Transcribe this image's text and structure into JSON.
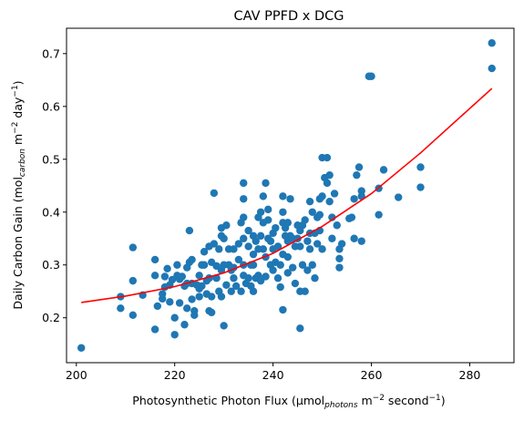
{
  "chart_data": {
    "type": "scatter",
    "title": "CAV PPFD x DCG",
    "xlabel": {
      "pre": "Photosynthetic Photon Flux (µmol",
      "sub": "photons",
      "mid": " m",
      "sup": "−2",
      "post": " second",
      "sup2": "−1",
      "end": ")"
    },
    "ylabel": {
      "pre": "Daily Carbon Gain (mol",
      "sub": "carbon",
      "mid": " m",
      "sup": "−2",
      "post": " day",
      "sup2": "−1",
      "end": ")"
    },
    "xlim": [
      198,
      289
    ],
    "ylim": [
      0.115,
      0.748
    ],
    "xticks": [
      200,
      220,
      240,
      260,
      280
    ],
    "yticks": [
      0.2,
      0.3,
      0.4,
      0.5,
      0.6,
      0.7
    ],
    "grid": false,
    "series": [
      {
        "kind": "scatter",
        "color": "#1f77b4",
        "points": [
          [
            201,
            0.143
          ],
          [
            209,
            0.24
          ],
          [
            209,
            0.218
          ],
          [
            211.5,
            0.333
          ],
          [
            211.5,
            0.27
          ],
          [
            211.5,
            0.205
          ],
          [
            213.5,
            0.243
          ],
          [
            216,
            0.31
          ],
          [
            216,
            0.28
          ],
          [
            216,
            0.178
          ],
          [
            216.5,
            0.222
          ],
          [
            217.5,
            0.236
          ],
          [
            217.5,
            0.245
          ],
          [
            218,
            0.258
          ],
          [
            218,
            0.278
          ],
          [
            218.5,
            0.293
          ],
          [
            219,
            0.262
          ],
          [
            219,
            0.23
          ],
          [
            219.5,
            0.272
          ],
          [
            220,
            0.2
          ],
          [
            220,
            0.168
          ],
          [
            220.5,
            0.28
          ],
          [
            220.5,
            0.3
          ],
          [
            221,
            0.273
          ],
          [
            221,
            0.228
          ],
          [
            221.5,
            0.278
          ],
          [
            222,
            0.26
          ],
          [
            222,
            0.187
          ],
          [
            222.5,
            0.218
          ],
          [
            222.5,
            0.265
          ],
          [
            222.5,
            0.295
          ],
          [
            223,
            0.365
          ],
          [
            223,
            0.305
          ],
          [
            223.5,
            0.31
          ],
          [
            223.5,
            0.265
          ],
          [
            223.5,
            0.235
          ],
          [
            224,
            0.213
          ],
          [
            224,
            0.205
          ],
          [
            224.5,
            0.262
          ],
          [
            225,
            0.28
          ],
          [
            225,
            0.255
          ],
          [
            225,
            0.24
          ],
          [
            225.5,
            0.3
          ],
          [
            225.5,
            0.26
          ],
          [
            226,
            0.325
          ],
          [
            226,
            0.3
          ],
          [
            226.5,
            0.27
          ],
          [
            226.5,
            0.245
          ],
          [
            227,
            0.335
          ],
          [
            227,
            0.275
          ],
          [
            227,
            0.213
          ],
          [
            227.5,
            0.305
          ],
          [
            227.5,
            0.24
          ],
          [
            227.5,
            0.21
          ],
          [
            228,
            0.436
          ],
          [
            228,
            0.34
          ],
          [
            228.5,
            0.298
          ],
          [
            228.5,
            0.275
          ],
          [
            229,
            0.33
          ],
          [
            229,
            0.25
          ],
          [
            229.5,
            0.37
          ],
          [
            229.5,
            0.355
          ],
          [
            229.5,
            0.29
          ],
          [
            229.5,
            0.24
          ],
          [
            230,
            0.35
          ],
          [
            230,
            0.3
          ],
          [
            230,
            0.185
          ],
          [
            230.5,
            0.375
          ],
          [
            230.5,
            0.262
          ],
          [
            231,
            0.33
          ],
          [
            231,
            0.3
          ],
          [
            231.5,
            0.29
          ],
          [
            231.5,
            0.25
          ],
          [
            232,
            0.33
          ],
          [
            232,
            0.295
          ],
          [
            232,
            0.275
          ],
          [
            232.5,
            0.26
          ],
          [
            233,
            0.34
          ],
          [
            233,
            0.31
          ],
          [
            233.5,
            0.38
          ],
          [
            233.5,
            0.25
          ],
          [
            234,
            0.455
          ],
          [
            234,
            0.425
          ],
          [
            234,
            0.39
          ],
          [
            234,
            0.35
          ],
          [
            234,
            0.3
          ],
          [
            234,
            0.28
          ],
          [
            234.5,
            0.265
          ],
          [
            235,
            0.365
          ],
          [
            235,
            0.335
          ],
          [
            235,
            0.275
          ],
          [
            235.5,
            0.3
          ],
          [
            235.5,
            0.26
          ],
          [
            236,
            0.355
          ],
          [
            236,
            0.32
          ],
          [
            236,
            0.3
          ],
          [
            236,
            0.25
          ],
          [
            236.5,
            0.345
          ],
          [
            236.5,
            0.275
          ],
          [
            237,
            0.39
          ],
          [
            237,
            0.33
          ],
          [
            237,
            0.28
          ],
          [
            237.5,
            0.4
          ],
          [
            237.5,
            0.355
          ],
          [
            237.5,
            0.27
          ],
          [
            238,
            0.43
          ],
          [
            238,
            0.38
          ],
          [
            238,
            0.33
          ],
          [
            238.5,
            0.455
          ],
          [
            238.5,
            0.315
          ],
          [
            238.5,
            0.278
          ],
          [
            239,
            0.405
          ],
          [
            239,
            0.385
          ],
          [
            239,
            0.35
          ],
          [
            239.5,
            0.345
          ],
          [
            239.5,
            0.3
          ],
          [
            240,
            0.36
          ],
          [
            240,
            0.33
          ],
          [
            240,
            0.29
          ],
          [
            240.5,
            0.37
          ],
          [
            240.5,
            0.305
          ],
          [
            241,
            0.335
          ],
          [
            241,
            0.275
          ],
          [
            241.5,
            0.3
          ],
          [
            241.5,
            0.258
          ],
          [
            242,
            0.43
          ],
          [
            242,
            0.4
          ],
          [
            242,
            0.38
          ],
          [
            242,
            0.32
          ],
          [
            242,
            0.215
          ],
          [
            242.5,
            0.37
          ],
          [
            242.5,
            0.355
          ],
          [
            243,
            0.38
          ],
          [
            243,
            0.345
          ],
          [
            243,
            0.315
          ],
          [
            243,
            0.285
          ],
          [
            243.5,
            0.425
          ],
          [
            243.5,
            0.355
          ],
          [
            244,
            0.35
          ],
          [
            244,
            0.295
          ],
          [
            244.5,
            0.335
          ],
          [
            244.5,
            0.265
          ],
          [
            245,
            0.375
          ],
          [
            245,
            0.35
          ],
          [
            245.5,
            0.365
          ],
          [
            245.5,
            0.335
          ],
          [
            245.5,
            0.25
          ],
          [
            245.5,
            0.18
          ],
          [
            246,
            0.375
          ],
          [
            246,
            0.3
          ],
          [
            246.5,
            0.385
          ],
          [
            246.5,
            0.25
          ],
          [
            247,
            0.345
          ],
          [
            247,
            0.29
          ],
          [
            247.5,
            0.42
          ],
          [
            247.5,
            0.36
          ],
          [
            247.5,
            0.33
          ],
          [
            248,
            0.4
          ],
          [
            248,
            0.3
          ],
          [
            248.5,
            0.36
          ],
          [
            248.5,
            0.275
          ],
          [
            249,
            0.39
          ],
          [
            249,
            0.34
          ],
          [
            249.5,
            0.425
          ],
          [
            249.5,
            0.395
          ],
          [
            249.5,
            0.365
          ],
          [
            250,
            0.43
          ],
          [
            250,
            0.33
          ],
          [
            250,
            0.503
          ],
          [
            250.5,
            0.465
          ],
          [
            251,
            0.503
          ],
          [
            251,
            0.455
          ],
          [
            251.5,
            0.47
          ],
          [
            251.5,
            0.42
          ],
          [
            252,
            0.39
          ],
          [
            252,
            0.35
          ],
          [
            252.5,
            0.435
          ],
          [
            253,
            0.375
          ],
          [
            253.5,
            0.33
          ],
          [
            253.5,
            0.312
          ],
          [
            253.5,
            0.295
          ],
          [
            254,
            0.34
          ],
          [
            255.5,
            0.388
          ],
          [
            256,
            0.39
          ],
          [
            256.5,
            0.425
          ],
          [
            256.5,
            0.35
          ],
          [
            257,
            0.47
          ],
          [
            257.5,
            0.485
          ],
          [
            258,
            0.44
          ],
          [
            258,
            0.345
          ],
          [
            258,
            0.43
          ],
          [
            259.5,
            0.657
          ],
          [
            260,
            0.657
          ],
          [
            261.5,
            0.445
          ],
          [
            261.5,
            0.395
          ],
          [
            262.5,
            0.48
          ],
          [
            265.5,
            0.428
          ],
          [
            270,
            0.485
          ],
          [
            270,
            0.447
          ],
          [
            284.5,
            0.72
          ],
          [
            284.5,
            0.672
          ]
        ]
      },
      {
        "kind": "line",
        "color": "#ff0000",
        "x": [
          201,
          210,
          220,
          230,
          240,
          250,
          260,
          270,
          284.5
        ],
        "y": [
          0.229,
          0.241,
          0.259,
          0.285,
          0.322,
          0.373,
          0.435,
          0.512,
          0.634
        ]
      }
    ]
  }
}
